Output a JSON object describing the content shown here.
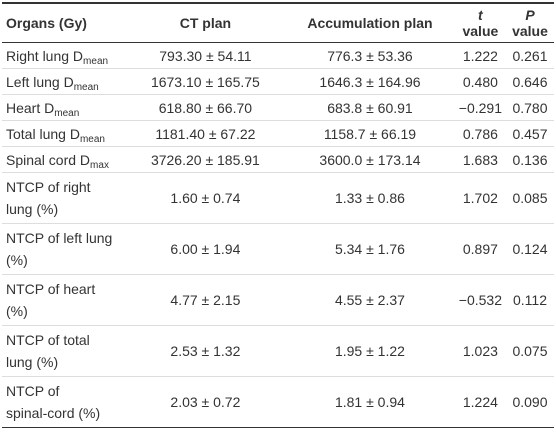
{
  "table": {
    "header": [
      "Organs (Gy)",
      "CT plan",
      "Accumulation plan",
      {
        "em": "t",
        "rest": " value"
      },
      {
        "em": "P",
        "rest": " value"
      }
    ],
    "rows": [
      [
        {
          "name": "Right lung D",
          "sub": "mean"
        },
        "793.30 ± 54.11",
        "776.3 ± 53.36",
        "1.222",
        "0.261"
      ],
      [
        {
          "name": "Left lung D",
          "sub": "mean"
        },
        "1673.10 ± 165.75",
        "1646.3 ± 164.96",
        "0.480",
        "0.646"
      ],
      [
        {
          "name": "Heart D",
          "sub": "mean"
        },
        "618.80 ± 66.70",
        "683.8 ± 60.91",
        "−0.291",
        "0.780"
      ],
      [
        {
          "name": "Total lung D",
          "sub": "mean"
        },
        "1181.40 ± 67.22",
        "1158.7 ± 66.19",
        "0.786",
        "0.457"
      ],
      [
        {
          "name": "Spinal cord D",
          "sub": "max"
        },
        "3726.20 ± 185.91",
        "3600.0 ± 173.14",
        "1.683",
        "0.136"
      ],
      [
        "NTCP of right\nlung (%)",
        "1.60 ± 0.74",
        "1.33 ± 0.86",
        "1.702",
        "0.085"
      ],
      [
        "NTCP of left lung\n(%)",
        "6.00 ± 1.94",
        "5.34 ± 1.76",
        "0.897",
        "0.124"
      ],
      [
        "NTCP of heart\n(%)",
        "4.77 ± 2.15",
        "4.55 ± 2.37",
        "−0.532",
        "0.112"
      ],
      [
        "NTCP of total\nlung (%)",
        "2.53 ± 1.32",
        "1.95 ± 1.22",
        "1.023",
        "0.075"
      ],
      [
        "NTCP of\nspinal-cord (%)",
        "2.03 ± 0.72",
        "1.81 ± 0.94",
        "1.224",
        "0.090"
      ]
    ]
  }
}
